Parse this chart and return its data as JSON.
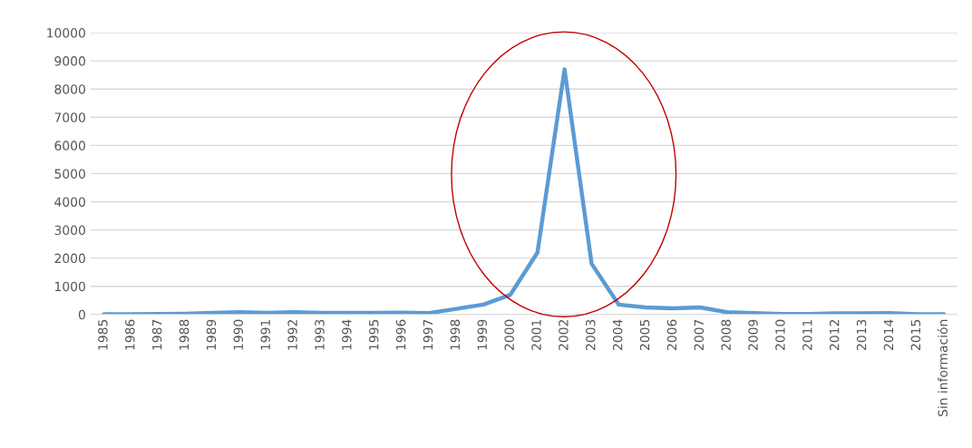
{
  "chart_data": {
    "type": "line",
    "categories": [
      "1985",
      "1986",
      "1987",
      "1988",
      "1989",
      "1990",
      "1991",
      "1992",
      "1993",
      "1994",
      "1995",
      "1996",
      "1997",
      "1998",
      "1999",
      "2000",
      "2001",
      "2002",
      "2003",
      "2004",
      "2005",
      "2006",
      "2007",
      "2008",
      "2009",
      "2010",
      "2011",
      "2012",
      "2013",
      "2014",
      "2015",
      "Sin información"
    ],
    "series": [
      {
        "color": "#5b9bd5",
        "values": [
          10,
          10,
          20,
          30,
          60,
          80,
          60,
          80,
          60,
          60,
          60,
          70,
          50,
          200,
          350,
          700,
          2200,
          8700,
          1800,
          350,
          250,
          220,
          250,
          80,
          50,
          20,
          20,
          40,
          40,
          50,
          10,
          10
        ]
      }
    ],
    "ylim": [
      0,
      10000
    ],
    "yticks": [
      0,
      1000,
      2000,
      3000,
      4000,
      5000,
      6000,
      7000,
      8000,
      9000,
      10000
    ],
    "grid": "y",
    "marker": "none",
    "line_style": "solid"
  }
}
